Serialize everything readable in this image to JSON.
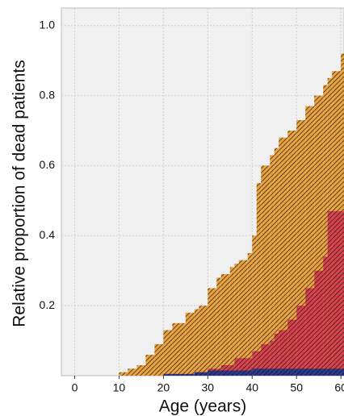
{
  "chart_data": {
    "type": "step-area",
    "xlabel": "Age (years)",
    "ylabel": "Relative proportion of dead patients",
    "x": [
      0,
      10,
      12,
      14,
      16,
      18,
      20,
      22,
      25,
      27,
      28,
      30,
      32,
      33,
      35,
      36,
      37,
      39,
      40,
      41,
      42,
      44,
      45,
      46,
      48,
      50,
      52,
      54,
      56,
      57,
      58,
      60
    ],
    "series": [
      {
        "color": "#e9a23f",
        "values": [
          0,
          0.01,
          0.02,
          0.03,
          0.06,
          0.09,
          0.13,
          0.15,
          0.18,
          0.19,
          0.2,
          0.25,
          0.28,
          0.29,
          0.31,
          0.32,
          0.33,
          0.35,
          0.4,
          0.55,
          0.6,
          0.63,
          0.65,
          0.68,
          0.7,
          0.73,
          0.77,
          0.8,
          0.83,
          0.85,
          0.87,
          0.92
        ]
      },
      {
        "color": "#d9424c",
        "values": [
          0,
          0,
          0,
          0,
          0,
          0,
          0,
          0,
          0,
          0,
          0.01,
          0.02,
          0.02,
          0.03,
          0.03,
          0.05,
          0.05,
          0.05,
          0.07,
          0.07,
          0.09,
          0.1,
          0.12,
          0.13,
          0.16,
          0.2,
          0.25,
          0.3,
          0.34,
          0.47,
          0.47,
          0.47
        ]
      },
      {
        "color": "#2b3a8c",
        "values": [
          0,
          0,
          0,
          0,
          0,
          0,
          0.005,
          0.005,
          0.005,
          0.01,
          0.01,
          0.015,
          0.015,
          0.015,
          0.015,
          0.015,
          0.015,
          0.015,
          0.02,
          0.02,
          0.02,
          0.02,
          0.02,
          0.02,
          0.02,
          0.02,
          0.02,
          0.02,
          0.02,
          0.02,
          0.02,
          0.02
        ]
      }
    ],
    "xlim": [
      -3,
      60.7
    ],
    "ylim": [
      0,
      1.05
    ],
    "xticks": [
      0,
      10,
      20,
      30,
      40,
      50,
      60
    ],
    "yticks": [
      0.2,
      0.4,
      0.6,
      0.8,
      {
        "value": 1,
        "label": "1.0"
      }
    ],
    "grid": true,
    "hatch": true
  }
}
